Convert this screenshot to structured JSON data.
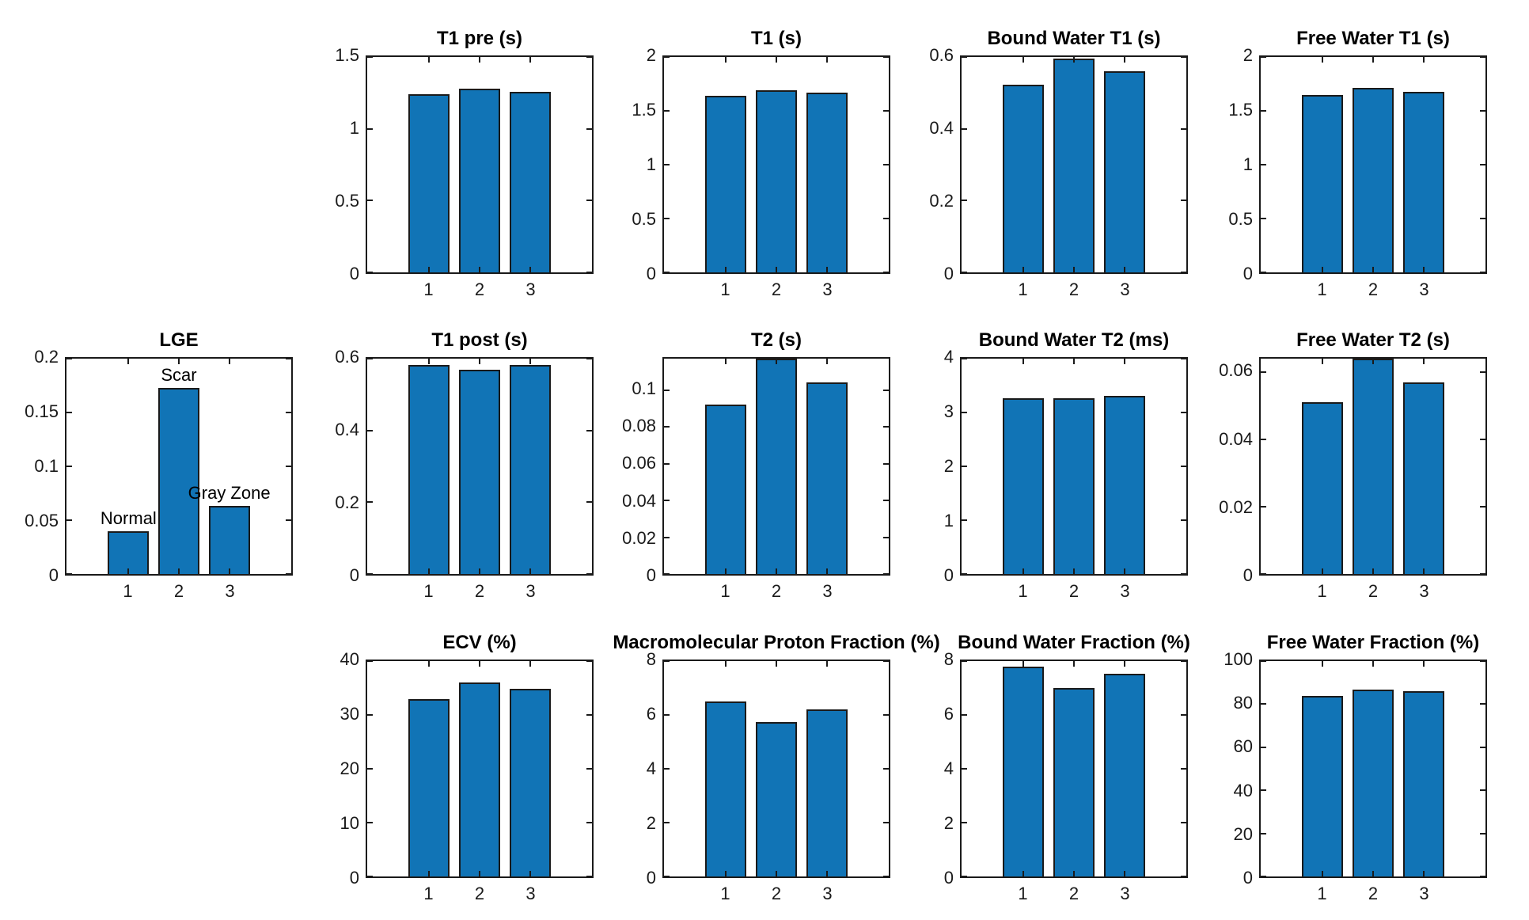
{
  "figure": {
    "background": "#ffffff",
    "bar_color": "#1174b6",
    "bar_edge_color": "#1a1a1a",
    "axis_color": "#1a1a1a"
  },
  "chart_data": [
    {
      "type": "bar",
      "title": "T1 pre (s)",
      "categories": [
        "1",
        "2",
        "3"
      ],
      "values": [
        1.24,
        1.28,
        1.26
      ],
      "ylim": [
        0,
        1.5
      ],
      "ytick_values": [
        0,
        0.5,
        1,
        1.5
      ],
      "ytick_labels": [
        "0",
        "0.5",
        "1",
        "1.5"
      ],
      "grid": "off",
      "legend": "none"
    },
    {
      "type": "bar",
      "title": "T1 (s)",
      "categories": [
        "1",
        "2",
        "3"
      ],
      "values": [
        1.64,
        1.69,
        1.67
      ],
      "ylim": [
        0,
        2
      ],
      "ytick_values": [
        0,
        0.5,
        1,
        1.5,
        2
      ],
      "ytick_labels": [
        "0",
        "0.5",
        "1",
        "1.5",
        "2"
      ],
      "grid": "off",
      "legend": "none"
    },
    {
      "type": "bar",
      "title": "Bound Water T1 (s)",
      "categories": [
        "1",
        "2",
        "3"
      ],
      "values": [
        0.522,
        0.596,
        0.561
      ],
      "ylim": [
        0,
        0.6
      ],
      "ytick_values": [
        0,
        0.2,
        0.4,
        0.6
      ],
      "ytick_labels": [
        "0",
        "0.2",
        "0.4",
        "0.6"
      ],
      "grid": "off",
      "legend": "none"
    },
    {
      "type": "bar",
      "title": "Free Water T1 (s)",
      "categories": [
        "1",
        "2",
        "3"
      ],
      "values": [
        1.65,
        1.71,
        1.68
      ],
      "ylim": [
        0,
        2
      ],
      "ytick_values": [
        0,
        0.5,
        1,
        1.5,
        2
      ],
      "ytick_labels": [
        "0",
        "0.5",
        "1",
        "1.5",
        "2"
      ],
      "grid": "off",
      "legend": "none"
    },
    {
      "type": "bar",
      "title": "LGE",
      "categories": [
        "1",
        "2",
        "3"
      ],
      "values": [
        0.04,
        0.173,
        0.063
      ],
      "bar_labels": [
        "Normal",
        "Scar",
        "Gray Zone"
      ],
      "ylim": [
        0,
        0.2
      ],
      "ytick_values": [
        0,
        0.05,
        0.1,
        0.15,
        0.2
      ],
      "ytick_labels": [
        "0",
        "0.05",
        "0.1",
        "0.15",
        "0.2"
      ],
      "grid": "off",
      "legend": "none"
    },
    {
      "type": "bar",
      "title": "T1 post (s)",
      "categories": [
        "1",
        "2",
        "3"
      ],
      "values": [
        0.583,
        0.57,
        0.583
      ],
      "ylim": [
        0,
        0.6
      ],
      "ytick_values": [
        0,
        0.2,
        0.4,
        0.6
      ],
      "ytick_labels": [
        "0",
        "0.2",
        "0.4",
        "0.6"
      ],
      "grid": "off",
      "legend": "none"
    },
    {
      "type": "bar",
      "title": "T2 (s)",
      "categories": [
        "1",
        "2",
        "3"
      ],
      "values": [
        0.092,
        0.117,
        0.104
      ],
      "ylim": [
        0,
        0.117
      ],
      "ytick_values": [
        0,
        0.02,
        0.04,
        0.06,
        0.08,
        0.1
      ],
      "ytick_labels": [
        "0",
        "0.02",
        "0.04",
        "0.06",
        "0.08",
        "0.1"
      ],
      "grid": "off",
      "legend": "none"
    },
    {
      "type": "bar",
      "title": "Bound Water T2 (ms)",
      "categories": [
        "1",
        "2",
        "3"
      ],
      "values": [
        3.26,
        3.26,
        3.31
      ],
      "ylim": [
        0,
        4
      ],
      "ytick_values": [
        0,
        1,
        2,
        3,
        4
      ],
      "ytick_labels": [
        "0",
        "1",
        "2",
        "3",
        "4"
      ],
      "grid": "off",
      "legend": "none"
    },
    {
      "type": "bar",
      "title": "Free Water T2 (s)",
      "categories": [
        "1",
        "2",
        "3"
      ],
      "values": [
        0.051,
        0.064,
        0.057
      ],
      "ylim": [
        0,
        0.064
      ],
      "ytick_values": [
        0,
        0.02,
        0.04,
        0.06
      ],
      "ytick_labels": [
        "0",
        "0.02",
        "0.04",
        "0.06"
      ],
      "grid": "off",
      "legend": "none"
    },
    {
      "type": "bar",
      "title": "ECV (%)",
      "categories": [
        "1",
        "2",
        "3"
      ],
      "values": [
        32.9,
        36.1,
        34.9
      ],
      "ylim": [
        0,
        40
      ],
      "ytick_values": [
        0,
        10,
        20,
        30,
        40
      ],
      "ytick_labels": [
        "0",
        "10",
        "20",
        "30",
        "40"
      ],
      "grid": "off",
      "legend": "none"
    },
    {
      "type": "bar",
      "title": "Macromolecular Proton Fraction (%)",
      "categories": [
        "1",
        "2",
        "3"
      ],
      "values": [
        6.5,
        5.75,
        6.2
      ],
      "ylim": [
        0,
        8
      ],
      "ytick_values": [
        0,
        2,
        4,
        6,
        8
      ],
      "ytick_labels": [
        "0",
        "2",
        "4",
        "6",
        "8"
      ],
      "grid": "off",
      "legend": "none"
    },
    {
      "type": "bar",
      "title": "Bound Water Fraction (%)",
      "categories": [
        "1",
        "2",
        "3"
      ],
      "values": [
        7.78,
        6.99,
        7.52
      ],
      "ylim": [
        0,
        8
      ],
      "ytick_values": [
        0,
        2,
        4,
        6,
        8
      ],
      "ytick_labels": [
        "0",
        "2",
        "4",
        "6",
        "8"
      ],
      "grid": "off",
      "legend": "none"
    },
    {
      "type": "bar",
      "title": "Free Water Fraction (%)",
      "categories": [
        "1",
        "2",
        "3"
      ],
      "values": [
        83.7,
        86.7,
        85.9
      ],
      "ylim": [
        0,
        100
      ],
      "ytick_values": [
        0,
        20,
        40,
        60,
        80,
        100
      ],
      "ytick_labels": [
        "0",
        "20",
        "40",
        "60",
        "80",
        "100"
      ],
      "grid": "off",
      "legend": "none"
    }
  ]
}
